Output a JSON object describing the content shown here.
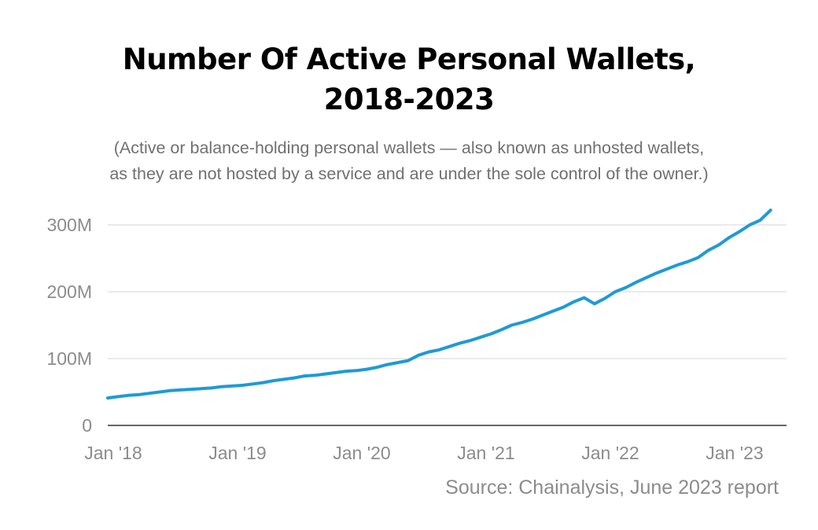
{
  "chart_data": {
    "type": "line",
    "title_line1": "Number Of Active Personal Wallets,",
    "title_line2": "2018-2023",
    "subtitle_line1": "(Active or balance-holding personal wallets — also known as unhosted wallets,",
    "subtitle_line2": "as they are not hosted by a service and are under the sole control of the owner.)",
    "source": "Source: Chainalysis, June 2023 report",
    "xlabel": "",
    "ylabel": "",
    "y_unit": "millions of wallets",
    "ylim": [
      0,
      300
    ],
    "xlim": [
      "2018-01",
      "2023-06"
    ],
    "y_ticks": [
      {
        "value": 0,
        "label": "0"
      },
      {
        "value": 100,
        "label": "100M"
      },
      {
        "value": 200,
        "label": "200M"
      },
      {
        "value": 300,
        "label": "300M"
      }
    ],
    "x_ticks": [
      {
        "value": "2018-01",
        "label": "Jan '18"
      },
      {
        "value": "2019-01",
        "label": "Jan '19"
      },
      {
        "value": "2020-01",
        "label": "Jan '20"
      },
      {
        "value": "2021-01",
        "label": "Jan '21"
      },
      {
        "value": "2022-01",
        "label": "Jan '22"
      },
      {
        "value": "2023-01",
        "label": "Jan '23"
      }
    ],
    "grid": "horizontal",
    "line_color": "#1f9ad6",
    "series": [
      {
        "points": [
          [
            "2018-01",
            41
          ],
          [
            "2018-02",
            43
          ],
          [
            "2018-03",
            45
          ],
          [
            "2018-04",
            46
          ],
          [
            "2018-05",
            48
          ],
          [
            "2018-06",
            50
          ],
          [
            "2018-07",
            52
          ],
          [
            "2018-08",
            53
          ],
          [
            "2018-09",
            54
          ],
          [
            "2018-10",
            55
          ],
          [
            "2018-11",
            56
          ],
          [
            "2018-12",
            58
          ],
          [
            "2019-01",
            59
          ],
          [
            "2019-02",
            60
          ],
          [
            "2019-03",
            62
          ],
          [
            "2019-04",
            64
          ],
          [
            "2019-05",
            67
          ],
          [
            "2019-06",
            69
          ],
          [
            "2019-07",
            71
          ],
          [
            "2019-08",
            74
          ],
          [
            "2019-09",
            75
          ],
          [
            "2019-10",
            77
          ],
          [
            "2019-11",
            79
          ],
          [
            "2019-12",
            81
          ],
          [
            "2020-01",
            82
          ],
          [
            "2020-02",
            84
          ],
          [
            "2020-03",
            87
          ],
          [
            "2020-04",
            91
          ],
          [
            "2020-05",
            94
          ],
          [
            "2020-06",
            97
          ],
          [
            "2020-07",
            105
          ],
          [
            "2020-08",
            110
          ],
          [
            "2020-09",
            113
          ],
          [
            "2020-10",
            118
          ],
          [
            "2020-11",
            123
          ],
          [
            "2020-12",
            127
          ],
          [
            "2021-01",
            132
          ],
          [
            "2021-02",
            137
          ],
          [
            "2021-03",
            143
          ],
          [
            "2021-04",
            150
          ],
          [
            "2021-05",
            154
          ],
          [
            "2021-06",
            159
          ],
          [
            "2021-07",
            165
          ],
          [
            "2021-08",
            171
          ],
          [
            "2021-09",
            177
          ],
          [
            "2021-10",
            185
          ],
          [
            "2021-11",
            191
          ],
          [
            "2021-12",
            182
          ],
          [
            "2022-01",
            190
          ],
          [
            "2022-02",
            200
          ],
          [
            "2022-03",
            206
          ],
          [
            "2022-04",
            214
          ],
          [
            "2022-05",
            221
          ],
          [
            "2022-06",
            228
          ],
          [
            "2022-07",
            234
          ],
          [
            "2022-08",
            240
          ],
          [
            "2022-09",
            245
          ],
          [
            "2022-10",
            251
          ],
          [
            "2022-11",
            262
          ],
          [
            "2022-12",
            270
          ],
          [
            "2023-01",
            281
          ],
          [
            "2023-02",
            290
          ],
          [
            "2023-03",
            300
          ],
          [
            "2023-04",
            307
          ],
          [
            "2023-05",
            322
          ]
        ]
      }
    ]
  }
}
